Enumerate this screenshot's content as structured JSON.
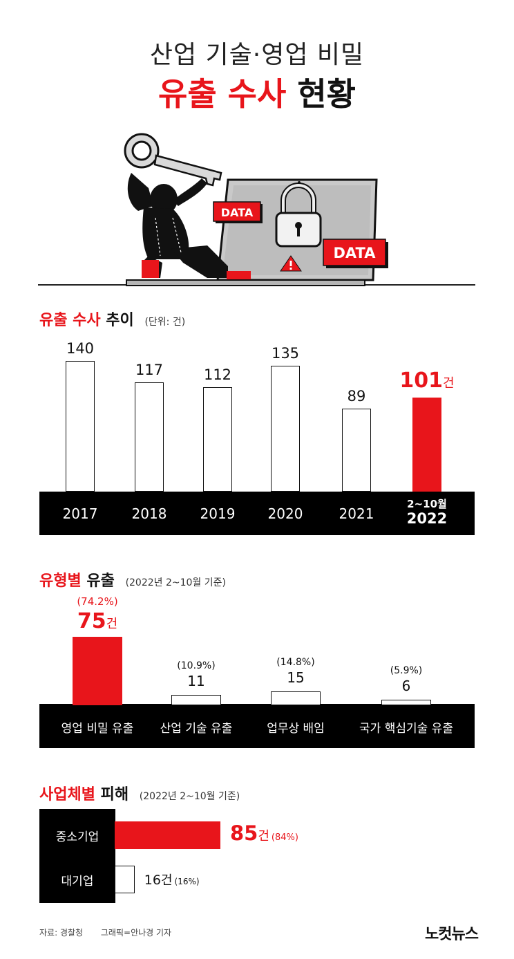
{
  "header": {
    "title_line1": "산업 기술·영업 비밀",
    "title_red": "유출 수사",
    "title_black": "현황"
  },
  "illustration": {
    "tag1": "DATA",
    "tag2": "DATA"
  },
  "trend": {
    "title_red": "유출 수사",
    "title_black": "추이",
    "unit": "(단위: 건)",
    "last_value_label": "101",
    "last_unit": "건",
    "last_period": "2~10월"
  },
  "types": {
    "title_red": "유형별",
    "title_black": "유출",
    "note": "(2022년 2~10월 기준)",
    "first_value": "75",
    "first_unit": "건"
  },
  "business": {
    "title_red": "사업체별",
    "title_black": "피해",
    "note": "(2022년 2~10월 기준)",
    "bars": [
      {
        "label": "중소기업",
        "value": "85",
        "unit": "건",
        "pct": "(84%)"
      },
      {
        "label": "대기업",
        "value": "16",
        "unit": "건",
        "pct": "(16%)"
      }
    ]
  },
  "footer": {
    "source": "자료: 경찰청",
    "graphic": "그래픽=안나경 기자",
    "logo": "노컷뉴스"
  },
  "colors": {
    "accent": "#e8151b",
    "ink": "#111111"
  },
  "chart_data": [
    {
      "type": "bar",
      "title": "유출 수사 추이",
      "unit": "(단위: 건)",
      "categories": [
        "2017",
        "2018",
        "2019",
        "2020",
        "2021",
        "2022"
      ],
      "values": [
        140,
        117,
        112,
        135,
        89,
        101
      ],
      "value_labels": [
        "140",
        "117",
        "112",
        "135",
        "89",
        "101"
      ],
      "highlight_index": 5
    },
    {
      "type": "bar",
      "title": "유형별 유출",
      "categories": [
        "영업 비밀 유출",
        "산업 기술 유출",
        "업무상 배임",
        "국가 핵심기술 유출"
      ],
      "values": [
        75,
        11,
        15,
        6
      ],
      "value_labels": [
        "75",
        "11",
        "15",
        "6"
      ],
      "percent_labels": [
        "(74.2%)",
        "(10.9%)",
        "(14.8%)",
        "(5.9%)"
      ],
      "highlight_index": 0
    },
    {
      "type": "bar",
      "orientation": "horizontal",
      "title": "사업체별 피해",
      "categories": [
        "중소기업",
        "대기업"
      ],
      "values": [
        85,
        16
      ],
      "percent_labels": [
        "(84%)",
        "(16%)"
      ]
    }
  ]
}
